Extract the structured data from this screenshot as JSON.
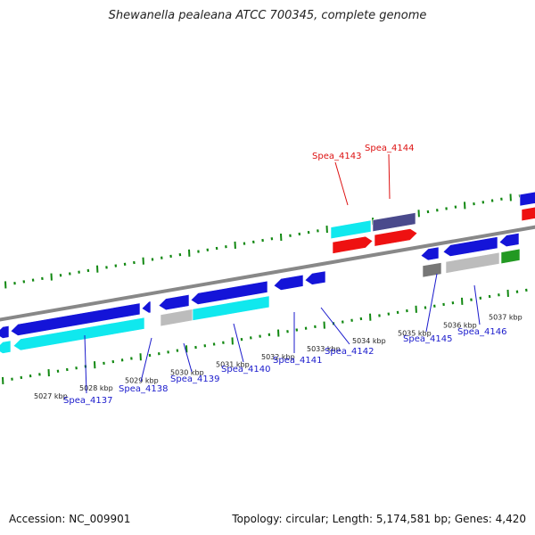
{
  "title": "Shewanella pealeana ATCC 700345, complete genome",
  "footer": {
    "accession": "Accession: NC_009901",
    "summary": "Topology: circular; Length: 5,174,581 bp; Genes: 4,420"
  },
  "colors": {
    "backbone": "#888888",
    "tick": "#118811",
    "cds_blue": "#1414d8",
    "cds_cyan": "#10e8ee",
    "cds_red": "#ee1111",
    "cds_gray": "#bcbcbc",
    "cds_darkgray": "#777777",
    "cds_slate": "#4a4a8c",
    "cds_green": "#229922",
    "label_blue": "#1a1acc",
    "label_red": "#dd1111"
  },
  "kbp_labels": [
    "5027 kbp",
    "5028 kbp",
    "5029 kbp",
    "5030 kbp",
    "5031 kbp",
    "5032 kbp",
    "5033 kbp",
    "5034 kbp",
    "5035 kbp",
    "5036 kbp",
    "5037 kbp"
  ],
  "gene_labels": [
    {
      "text": "Spea_4137",
      "color": "blue"
    },
    {
      "text": "Spea_4138",
      "color": "blue"
    },
    {
      "text": "Spea_4139",
      "color": "blue"
    },
    {
      "text": "Spea_4140",
      "color": "blue"
    },
    {
      "text": "Spea_4141",
      "color": "blue"
    },
    {
      "text": "Spea_4142",
      "color": "blue"
    },
    {
      "text": "Spea_4143",
      "color": "red"
    },
    {
      "text": "Spea_4144",
      "color": "red"
    },
    {
      "text": "Spea_4145",
      "color": "blue"
    },
    {
      "text": "Spea_4146",
      "color": "blue"
    }
  ]
}
